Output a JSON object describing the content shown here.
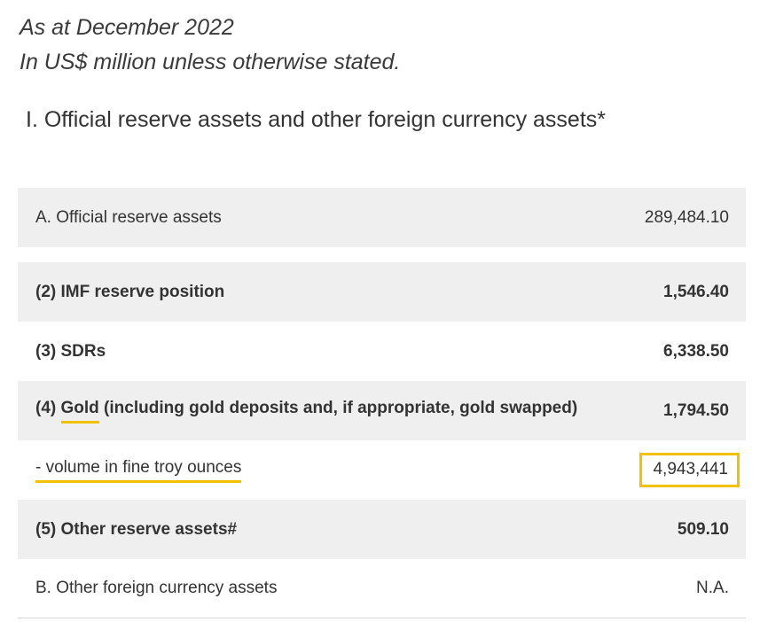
{
  "header": {
    "date_line": "As at December 2022",
    "unit_line": "In US$ million unless otherwise stated."
  },
  "section": {
    "title": "I. Official reserve assets and other foreign currency assets*"
  },
  "rows": {
    "official_reserve": {
      "label": "A. Official reserve assets",
      "value": "289,484.10"
    },
    "imf": {
      "label": "(2) IMF reserve position",
      "value": "1,546.40"
    },
    "sdrs": {
      "label": "(3) SDRs",
      "value": "6,338.50"
    },
    "gold": {
      "prefix": "(4) ",
      "keyword": "Gold",
      "suffix": " (including gold deposits and, if appropriate, gold swapped)",
      "value": "1,794.50"
    },
    "volume": {
      "label": "- volume in fine troy ounces",
      "value": "4,943,441"
    },
    "other_reserve": {
      "label": "(5) Other reserve assets#",
      "value": "509.10"
    },
    "other_fx": {
      "label": "B. Other foreign currency assets",
      "value": "N.A."
    }
  },
  "highlight": {
    "color": "#f2c200"
  }
}
